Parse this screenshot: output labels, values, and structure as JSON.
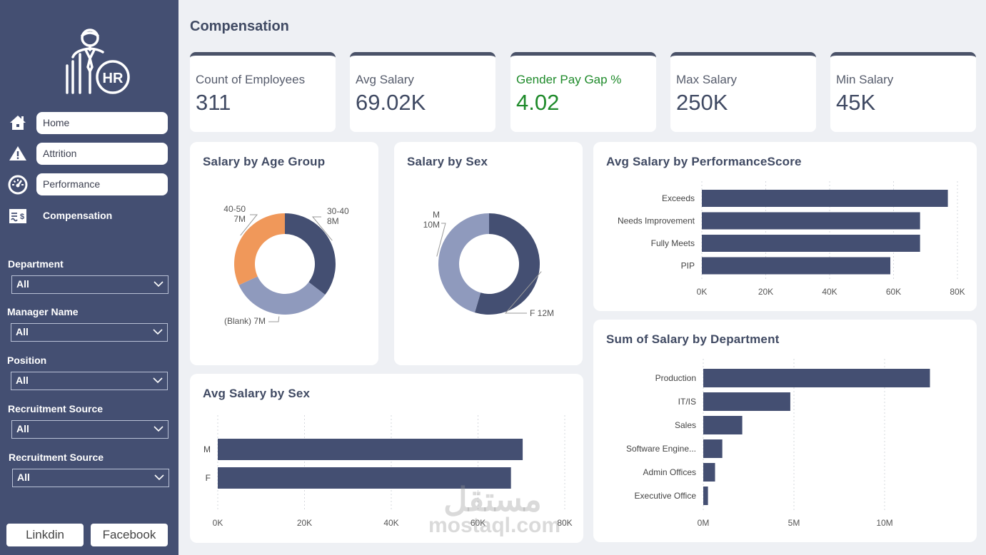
{
  "sidebar": {
    "logo": "hr-person-logo",
    "nav": [
      {
        "label": "Home",
        "icon": "home-icon"
      },
      {
        "label": "Attrition",
        "icon": "warning-icon"
      },
      {
        "label": "Performance",
        "icon": "speedometer-icon"
      },
      {
        "label": "Compensation",
        "icon": "salary-icon",
        "active": true
      }
    ],
    "filters": [
      {
        "label": "Department",
        "value": "All"
      },
      {
        "label": "Manager Name",
        "value": "All"
      },
      {
        "label": "Position",
        "value": "All"
      },
      {
        "label": "Recruitment Source",
        "value": "All"
      },
      {
        "label": "Recruitment Source",
        "value": "All"
      }
    ],
    "social": {
      "linkedin": "Linkdin",
      "facebook": "Facebook"
    }
  },
  "page": {
    "title": "Compensation"
  },
  "kpis": [
    {
      "label": "Count of Employees",
      "value": "311"
    },
    {
      "label": "Avg Salary",
      "value": "69.02K"
    },
    {
      "label": "Gender Pay Gap %",
      "value": "4.02",
      "color": "#1e8a2a"
    },
    {
      "label": "Max Salary",
      "value": "250K"
    },
    {
      "label": "Min Salary",
      "value": "45K"
    }
  ],
  "colors": {
    "primary": "#444f72",
    "light": "#8f9abd",
    "accent": "#f0985a"
  },
  "watermark": {
    "arabic": "مستقل",
    "latin": "mostaql.com"
  },
  "chart_data": [
    {
      "id": "age",
      "type": "pie",
      "title": "Salary by Age Group",
      "slices": [
        {
          "label": "30-40",
          "value": 8,
          "display": "8M",
          "color": "#444f72"
        },
        {
          "label": "(Blank)",
          "value": 7.4,
          "display": "7M",
          "color": "#8f9abd"
        },
        {
          "label": "40-50",
          "value": 7.2,
          "display": "7M",
          "color": "#f0985a"
        }
      ]
    },
    {
      "id": "sex",
      "type": "pie",
      "title": "Salary by Sex",
      "slices": [
        {
          "label": "F",
          "value": 12,
          "display": "12M",
          "color": "#444f72"
        },
        {
          "label": "M",
          "value": 10,
          "display": "10M",
          "color": "#8f9abd"
        }
      ]
    },
    {
      "id": "perf",
      "type": "bar",
      "orientation": "horizontal",
      "title": "Avg Salary by PerformanceScore",
      "categories": [
        "Exceeds",
        "Needs Improvement",
        "Fully Meets",
        "PIP"
      ],
      "values": [
        77000,
        68300,
        68300,
        59000
      ],
      "xlim": [
        0,
        80000
      ],
      "ticks": [
        0,
        20000,
        40000,
        60000,
        80000
      ],
      "tick_labels": [
        "0K",
        "20K",
        "40K",
        "60K",
        "80K"
      ],
      "grid": true
    },
    {
      "id": "dept",
      "type": "bar",
      "orientation": "horizontal",
      "title": "Sum of Salary by Department",
      "categories": [
        "Production",
        "IT/IS",
        "Sales",
        "Software Engine...",
        "Admin Offices",
        "Executive Office"
      ],
      "values": [
        12500000,
        4800000,
        2150000,
        1050000,
        650000,
        260000
      ],
      "xlim": [
        0,
        15000000
      ],
      "ticks": [
        0,
        5000000,
        10000000
      ],
      "tick_labels": [
        "0M",
        "5M",
        "10M"
      ],
      "grid": true
    },
    {
      "id": "avgsex",
      "type": "bar",
      "orientation": "horizontal",
      "title": "Avg Salary by Sex",
      "categories": [
        "M",
        "F"
      ],
      "values": [
        70300,
        67600
      ],
      "xlim": [
        0,
        80000
      ],
      "ticks": [
        0,
        20000,
        40000,
        60000,
        80000
      ],
      "tick_labels": [
        "0K",
        "20K",
        "40K",
        "60K",
        "80K"
      ],
      "grid": true
    }
  ]
}
